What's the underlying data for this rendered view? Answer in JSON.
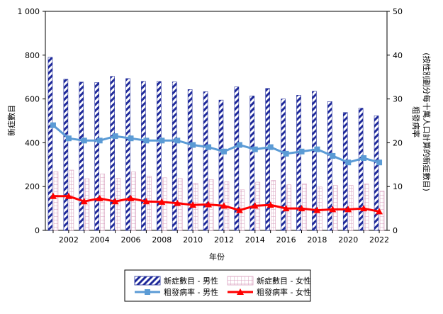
{
  "chart_data": {
    "type": "bar",
    "xlabel": "年份",
    "ylabel_left": "新症數目",
    "ylabel_right": "粗發病率\n(按性別劃分每十萬人口計算的新症數目)",
    "x": [
      2001,
      2002,
      2003,
      2004,
      2005,
      2006,
      2007,
      2008,
      2009,
      2010,
      2011,
      2012,
      2013,
      2014,
      2015,
      2016,
      2017,
      2018,
      2019,
      2020,
      2021,
      2022
    ],
    "x_tick_labels": [
      "2002",
      "2004",
      "2006",
      "2008",
      "2010",
      "2012",
      "2014",
      "2016",
      "2018",
      "2020",
      "2022"
    ],
    "y_left_ticks": [
      "0",
      "200",
      "400",
      "600",
      "800",
      "1 000"
    ],
    "y_right_ticks": [
      "0",
      "10",
      "20",
      "30",
      "40",
      "50"
    ],
    "ylim_left": [
      0,
      1000
    ],
    "ylim_right": [
      0,
      50
    ],
    "series": [
      {
        "name": "新症數目 - 男性",
        "kind": "bar",
        "axis": "left",
        "color": "#1f2a9a",
        "values": [
          790,
          690,
          677,
          675,
          703,
          693,
          680,
          680,
          678,
          643,
          633,
          595,
          655,
          614,
          648,
          600,
          617,
          635,
          588,
          538,
          558,
          523
        ]
      },
      {
        "name": "新症數目 - 女性",
        "kind": "bar",
        "axis": "left",
        "color": "#d9a0bf",
        "values": [
          268,
          275,
          236,
          258,
          238,
          267,
          247,
          240,
          237,
          215,
          232,
          222,
          185,
          220,
          228,
          208,
          212,
          198,
          205,
          205,
          212,
          180
        ]
      },
      {
        "name": "粗發病率 - 男性",
        "kind": "line",
        "axis": "right",
        "color": "#5b9bd5",
        "values": [
          24.0,
          21.0,
          20.5,
          20.5,
          21.5,
          21.0,
          20.5,
          20.5,
          20.5,
          19.5,
          19.0,
          18.0,
          19.5,
          18.5,
          19.0,
          17.5,
          18.0,
          18.5,
          17.0,
          15.5,
          16.5,
          15.5
        ]
      },
      {
        "name": "粗發病率 - 女性",
        "kind": "line",
        "axis": "right",
        "color": "#ff0000",
        "values": [
          7.8,
          7.8,
          6.6,
          7.3,
          6.6,
          7.3,
          6.6,
          6.5,
          6.2,
          5.8,
          5.9,
          5.6,
          4.6,
          5.6,
          5.8,
          5.0,
          5.0,
          4.6,
          4.8,
          4.8,
          5.0,
          4.3
        ]
      }
    ],
    "grid": false,
    "legend_position": "bottom"
  }
}
